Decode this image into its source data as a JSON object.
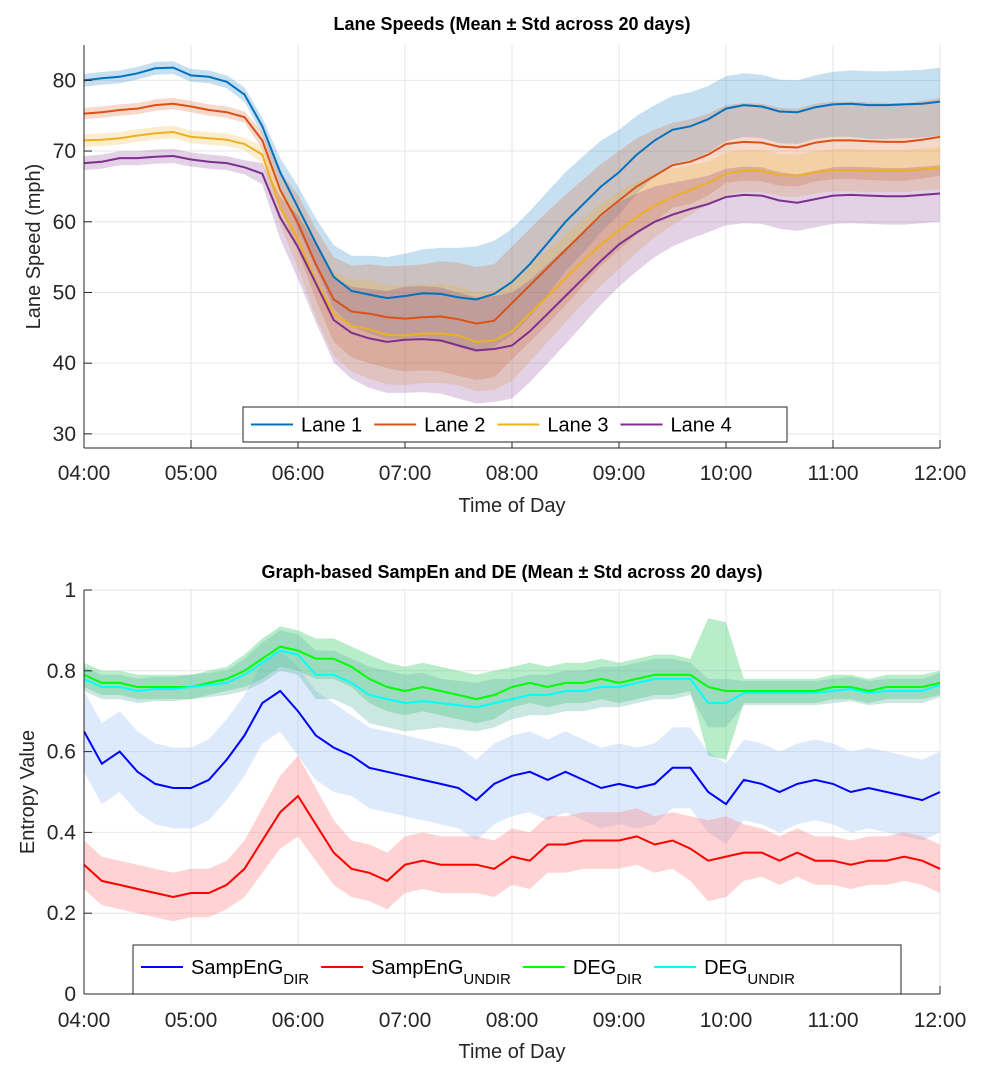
{
  "chart_data": [
    {
      "type": "line",
      "title": "Lane Speeds (Mean ± Std across 20 days)",
      "xlabel": "Time of Day",
      "ylabel": "Lane Speed (mph)",
      "ylim": [
        28,
        85
      ],
      "yticks": [
        30,
        40,
        50,
        60,
        70,
        80
      ],
      "xticks": [
        "04:00",
        "05:00",
        "06:00",
        "07:00",
        "08:00",
        "09:00",
        "10:00",
        "11:00",
        "12:00"
      ],
      "grid": true,
      "legend_placement": "bottom-center",
      "band": "mean ± std",
      "x": [
        "04:00",
        "04:10",
        "04:20",
        "04:30",
        "04:40",
        "04:50",
        "05:00",
        "05:10",
        "05:20",
        "05:30",
        "05:40",
        "05:50",
        "06:00",
        "06:10",
        "06:20",
        "06:30",
        "06:40",
        "06:50",
        "07:00",
        "07:10",
        "07:20",
        "07:30",
        "07:40",
        "07:50",
        "08:00",
        "08:10",
        "08:20",
        "08:30",
        "08:40",
        "08:50",
        "09:00",
        "09:10",
        "09:20",
        "09:30",
        "09:40",
        "09:50",
        "10:00",
        "10:10",
        "10:20",
        "10:30",
        "10:40",
        "10:50",
        "11:00",
        "11:10",
        "11:20",
        "11:30",
        "11:40",
        "11:50",
        "12:00"
      ],
      "series": [
        {
          "name": "Lane 1",
          "color": "#0072BD",
          "mean": [
            80,
            80.3,
            80.5,
            81,
            81.7,
            81.8,
            80.7,
            80.5,
            79.8,
            78,
            73.5,
            67,
            62,
            57,
            52.2,
            50.2,
            49.7,
            49.2,
            49.5,
            49.9,
            49.8,
            49.3,
            49,
            49.8,
            51.5,
            54,
            57,
            60,
            62.5,
            65,
            67,
            69.5,
            71.5,
            73,
            73.5,
            74.5,
            76,
            76.5,
            76.3,
            75.6,
            75.5,
            76.2,
            76.6,
            76.7,
            76.5,
            76.5,
            76.6,
            76.7,
            77
          ],
          "std": [
            0.9,
            0.9,
            0.9,
            0.9,
            0.9,
            0.9,
            0.9,
            0.9,
            0.9,
            1.0,
            1.2,
            2,
            3,
            3.5,
            4.5,
            5,
            5.5,
            5.8,
            6,
            6.2,
            6.5,
            7,
            7.5,
            7.5,
            7.5,
            7.5,
            7.3,
            7,
            6.8,
            6.5,
            6,
            5.5,
            5,
            4.8,
            4.8,
            4.7,
            4.6,
            4.5,
            4.5,
            4.5,
            4.5,
            4.5,
            4.6,
            4.7,
            4.8,
            4.8,
            4.8,
            4.8,
            4.8
          ]
        },
        {
          "name": "Lane 2",
          "color": "#D95319",
          "mean": [
            75.3,
            75.5,
            75.8,
            76,
            76.5,
            76.7,
            76.3,
            75.8,
            75.5,
            74.8,
            71.5,
            64.5,
            59.8,
            54,
            49,
            47.3,
            47,
            46.5,
            46.3,
            46.5,
            46.6,
            46.2,
            45.6,
            46,
            48.5,
            51,
            53.5,
            56,
            58.5,
            61,
            63,
            65,
            66.5,
            68,
            68.5,
            69.5,
            71,
            71.3,
            71.2,
            70.6,
            70.5,
            71.2,
            71.5,
            71.5,
            71.4,
            71.3,
            71.3,
            71.6,
            72
          ],
          "std": [
            0.8,
            0.8,
            0.8,
            0.8,
            0.8,
            0.8,
            0.8,
            0.8,
            0.8,
            0.8,
            1.2,
            2.5,
            4,
            5,
            6,
            6.5,
            7,
            7.2,
            7.5,
            7.5,
            7.8,
            8,
            8,
            8,
            8,
            8,
            8,
            7.8,
            7.5,
            7.2,
            7,
            6.8,
            6.5,
            6,
            6,
            5.8,
            5.5,
            5.5,
            5.5,
            5.5,
            5.5,
            5.5,
            5.5,
            5.5,
            5.5,
            5.5,
            5.5,
            5.5,
            5.5
          ]
        },
        {
          "name": "Lane 3",
          "color": "#EDB120",
          "mean": [
            71.5,
            71.6,
            71.8,
            72.2,
            72.5,
            72.7,
            72,
            71.8,
            71.6,
            71,
            69.5,
            62,
            57.5,
            51.5,
            47,
            45.3,
            44.8,
            44,
            43.9,
            44.2,
            44.2,
            43.9,
            43,
            43.2,
            44.5,
            47,
            49.5,
            52,
            54.5,
            56.8,
            58.8,
            60.7,
            62.3,
            63.5,
            64.5,
            65.5,
            66.8,
            67.2,
            67.2,
            66.6,
            66.5,
            67,
            67.3,
            67.3,
            67.2,
            67.2,
            67.2,
            67.4,
            67.6
          ],
          "std": [
            0.9,
            0.9,
            0.9,
            0.9,
            0.9,
            0.9,
            0.9,
            0.9,
            0.9,
            0.9,
            1.2,
            2.5,
            4,
            5,
            6,
            6.5,
            7,
            7,
            7,
            7,
            7,
            7,
            7,
            7,
            7,
            6.8,
            6.5,
            6.2,
            6,
            5.8,
            5.5,
            5,
            4.5,
            4,
            3.5,
            3,
            3,
            3,
            3,
            3,
            3,
            3,
            3,
            3,
            3,
            3,
            3,
            3,
            3
          ]
        },
        {
          "name": "Lane 4",
          "color": "#7E2F8E",
          "mean": [
            68.3,
            68.5,
            69,
            69,
            69.2,
            69.3,
            68.8,
            68.5,
            68.3,
            67.7,
            66.8,
            60.6,
            56.4,
            51.3,
            46.1,
            44.3,
            43.5,
            43,
            43.3,
            43.4,
            43.2,
            42.5,
            41.8,
            42,
            42.5,
            44.5,
            47,
            49.5,
            52,
            54.5,
            56.8,
            58.5,
            60,
            61,
            61.8,
            62.5,
            63.5,
            63.8,
            63.7,
            63,
            62.7,
            63.2,
            63.7,
            63.8,
            63.7,
            63.6,
            63.6,
            63.8,
            64
          ],
          "std": [
            1,
            1,
            1,
            1,
            1,
            1,
            1,
            1,
            1,
            1,
            1.5,
            3,
            4.5,
            5.5,
            6,
            6.5,
            7,
            7.2,
            7.5,
            7.5,
            7.5,
            7.5,
            7.5,
            7.5,
            7.5,
            7.2,
            7,
            6.8,
            6.5,
            6.2,
            6,
            5.5,
            5,
            4.5,
            4.2,
            4,
            4,
            4,
            4,
            4,
            4,
            4,
            4,
            4,
            4,
            4,
            4,
            4,
            4
          ]
        }
      ]
    },
    {
      "type": "line",
      "title": "Graph-based SampEn and DE (Mean ± Std across 20 days)",
      "xlabel": "Time of Day",
      "ylabel": "Entropy Value",
      "ylim": [
        0,
        1
      ],
      "yticks": [
        "0",
        "0.2",
        "0.4",
        "0.6",
        "0.8",
        "1"
      ],
      "xticks": [
        "04:00",
        "05:00",
        "06:00",
        "07:00",
        "08:00",
        "09:00",
        "10:00",
        "11:00",
        "12:00"
      ],
      "grid": true,
      "legend_placement": "bottom-center",
      "band": "mean ± std",
      "x": [
        "04:00",
        "04:10",
        "04:20",
        "04:30",
        "04:40",
        "04:50",
        "05:00",
        "05:10",
        "05:20",
        "05:30",
        "05:40",
        "05:50",
        "06:00",
        "06:10",
        "06:20",
        "06:30",
        "06:40",
        "06:50",
        "07:00",
        "07:10",
        "07:20",
        "07:30",
        "07:40",
        "07:50",
        "08:00",
        "08:10",
        "08:20",
        "08:30",
        "08:40",
        "08:50",
        "09:00",
        "09:10",
        "09:20",
        "09:30",
        "09:40",
        "09:50",
        "10:00",
        "10:10",
        "10:20",
        "10:30",
        "10:40",
        "10:50",
        "11:00",
        "11:10",
        "11:20",
        "11:30",
        "11:40",
        "11:50",
        "12:00"
      ],
      "series": [
        {
          "name": "SampEnG",
          "sub": "DIR",
          "color": "#0000FF",
          "band_color": "#9CC3F5",
          "mean": [
            0.65,
            0.57,
            0.6,
            0.55,
            0.52,
            0.51,
            0.51,
            0.53,
            0.58,
            0.64,
            0.72,
            0.75,
            0.7,
            0.64,
            0.61,
            0.59,
            0.56,
            0.55,
            0.54,
            0.53,
            0.52,
            0.51,
            0.48,
            0.52,
            0.54,
            0.55,
            0.53,
            0.55,
            0.53,
            0.51,
            0.52,
            0.51,
            0.52,
            0.56,
            0.56,
            0.5,
            0.47,
            0.53,
            0.52,
            0.5,
            0.52,
            0.53,
            0.52,
            0.5,
            0.51,
            0.5,
            0.49,
            0.48,
            0.5
          ],
          "std": [
            0.1,
            0.1,
            0.1,
            0.1,
            0.1,
            0.1,
            0.1,
            0.1,
            0.1,
            0.1,
            0.1,
            0.1,
            0.11,
            0.11,
            0.11,
            0.1,
            0.1,
            0.1,
            0.1,
            0.1,
            0.1,
            0.1,
            0.1,
            0.1,
            0.1,
            0.1,
            0.1,
            0.1,
            0.1,
            0.1,
            0.1,
            0.1,
            0.1,
            0.1,
            0.1,
            0.1,
            0.1,
            0.1,
            0.1,
            0.1,
            0.1,
            0.1,
            0.1,
            0.1,
            0.1,
            0.1,
            0.1,
            0.1,
            0.1
          ]
        },
        {
          "name": "SampEnG",
          "sub": "UNDIR",
          "color": "#FF0000",
          "band_color": "#FF8080",
          "mean": [
            0.32,
            0.28,
            0.27,
            0.26,
            0.25,
            0.24,
            0.25,
            0.25,
            0.27,
            0.31,
            0.38,
            0.45,
            0.49,
            0.42,
            0.35,
            0.31,
            0.3,
            0.28,
            0.32,
            0.33,
            0.32,
            0.32,
            0.32,
            0.31,
            0.34,
            0.33,
            0.37,
            0.37,
            0.38,
            0.38,
            0.38,
            0.39,
            0.37,
            0.38,
            0.36,
            0.33,
            0.34,
            0.35,
            0.35,
            0.33,
            0.35,
            0.33,
            0.33,
            0.32,
            0.33,
            0.33,
            0.34,
            0.33,
            0.31
          ],
          "std": [
            0.06,
            0.06,
            0.06,
            0.06,
            0.06,
            0.06,
            0.06,
            0.06,
            0.06,
            0.07,
            0.08,
            0.09,
            0.1,
            0.09,
            0.08,
            0.07,
            0.07,
            0.07,
            0.07,
            0.07,
            0.07,
            0.07,
            0.07,
            0.07,
            0.07,
            0.07,
            0.07,
            0.07,
            0.07,
            0.07,
            0.07,
            0.07,
            0.07,
            0.07,
            0.08,
            0.1,
            0.1,
            0.07,
            0.06,
            0.06,
            0.06,
            0.06,
            0.06,
            0.06,
            0.06,
            0.06,
            0.06,
            0.06,
            0.06
          ]
        },
        {
          "name": "DEG",
          "sub": "DIR",
          "color": "#00FF00",
          "band_color": "#33CC66",
          "mean": [
            0.79,
            0.77,
            0.77,
            0.76,
            0.76,
            0.76,
            0.76,
            0.77,
            0.78,
            0.8,
            0.83,
            0.86,
            0.85,
            0.83,
            0.83,
            0.81,
            0.78,
            0.76,
            0.75,
            0.76,
            0.75,
            0.74,
            0.73,
            0.74,
            0.76,
            0.77,
            0.76,
            0.77,
            0.77,
            0.78,
            0.77,
            0.78,
            0.79,
            0.79,
            0.79,
            0.76,
            0.75,
            0.75,
            0.75,
            0.75,
            0.75,
            0.75,
            0.76,
            0.76,
            0.75,
            0.76,
            0.76,
            0.76,
            0.77
          ],
          "std": [
            0.03,
            0.03,
            0.03,
            0.03,
            0.03,
            0.03,
            0.03,
            0.03,
            0.03,
            0.04,
            0.05,
            0.05,
            0.05,
            0.05,
            0.05,
            0.05,
            0.06,
            0.06,
            0.06,
            0.06,
            0.06,
            0.06,
            0.06,
            0.06,
            0.05,
            0.05,
            0.05,
            0.05,
            0.05,
            0.05,
            0.05,
            0.05,
            0.05,
            0.05,
            0.04,
            0.17,
            0.17,
            0.03,
            0.03,
            0.03,
            0.03,
            0.03,
            0.03,
            0.03,
            0.03,
            0.03,
            0.03,
            0.03,
            0.03
          ]
        },
        {
          "name": "DEG",
          "sub": "UNDIR",
          "color": "#00FFFF",
          "band_color": "#66BBAA",
          "mean": [
            0.78,
            0.76,
            0.76,
            0.75,
            0.755,
            0.755,
            0.76,
            0.765,
            0.77,
            0.79,
            0.82,
            0.85,
            0.84,
            0.79,
            0.79,
            0.77,
            0.74,
            0.73,
            0.72,
            0.725,
            0.72,
            0.715,
            0.71,
            0.72,
            0.73,
            0.74,
            0.74,
            0.75,
            0.75,
            0.76,
            0.76,
            0.77,
            0.78,
            0.78,
            0.78,
            0.72,
            0.72,
            0.745,
            0.745,
            0.745,
            0.745,
            0.745,
            0.75,
            0.755,
            0.745,
            0.75,
            0.75,
            0.75,
            0.765
          ],
          "std": [
            0.03,
            0.03,
            0.03,
            0.03,
            0.03,
            0.03,
            0.03,
            0.03,
            0.03,
            0.04,
            0.05,
            0.05,
            0.05,
            0.06,
            0.06,
            0.06,
            0.07,
            0.07,
            0.07,
            0.07,
            0.06,
            0.06,
            0.06,
            0.06,
            0.05,
            0.05,
            0.05,
            0.05,
            0.05,
            0.05,
            0.05,
            0.05,
            0.05,
            0.05,
            0.04,
            0.06,
            0.06,
            0.03,
            0.03,
            0.03,
            0.03,
            0.03,
            0.03,
            0.03,
            0.03,
            0.03,
            0.03,
            0.03,
            0.03
          ]
        }
      ]
    }
  ]
}
